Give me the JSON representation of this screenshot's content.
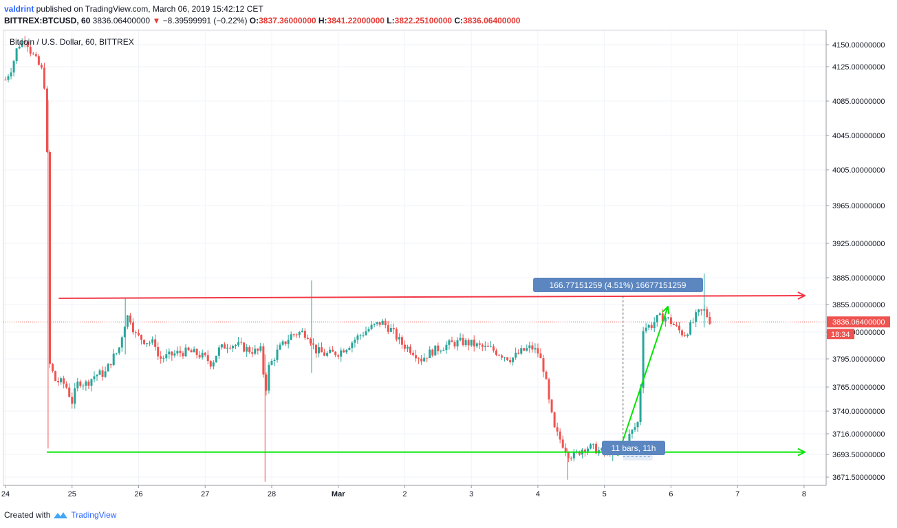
{
  "header": {
    "user": "valdrint",
    "published": " published on TradingView.com, March 06, 2019 15:42:12 CET",
    "symbol": "BITTREX:BTCUSD, 60",
    "last": " 3836.06400000",
    "change_arrow": "▼",
    "change": " −8.39599991 (−0.22%)",
    "o_label": " O:",
    "o_value": "3837.36000000",
    "h_label": " H:",
    "h_value": "3841.22000000",
    "l_label": " L:",
    "l_value": "3822.25100000",
    "c_label": " C:",
    "c_value": "3836.06400000"
  },
  "footer": {
    "created_with": "Created with",
    "brand": "TradingView"
  },
  "chart_data": {
    "type": "candlestick",
    "title": "Bitcoin / U.S. Dollar, 60, BITTREX",
    "y_ticks": [
      "4150.00000000",
      "4125.00000000",
      "4085.00000000",
      "4045.00000000",
      "4005.00000000",
      "3965.00000000",
      "3925.00000000",
      "3885.00000000",
      "3855.00000000",
      "3825.00000000",
      "3795.00000000",
      "3765.00000000",
      "3740.00000000",
      "3716.00000000",
      "3693.50000000",
      "3671.50000000"
    ],
    "x_ticks": [
      "24",
      "25",
      "26",
      "27",
      "28",
      "Mar",
      "2",
      "3",
      "4",
      "5",
      "6",
      "7",
      "8"
    ],
    "ylim": [
      3665,
      4165
    ],
    "xlim": [
      0,
      12.4
    ],
    "grid": true,
    "last_price_label": "3836.06400000",
    "countdown": "18:34",
    "up_color": "#26a69a",
    "down_color": "#ef5350",
    "price_keypoints": [
      [
        0.0,
        4110
      ],
      [
        0.1,
        4125
      ],
      [
        0.18,
        4148
      ],
      [
        0.3,
        4158
      ],
      [
        0.38,
        4142
      ],
      [
        0.46,
        4132
      ],
      [
        0.55,
        4120
      ],
      [
        0.62,
        4086
      ],
      [
        0.64,
        3830
      ],
      [
        0.65,
        3792
      ],
      [
        0.75,
        3772
      ],
      [
        0.9,
        3768
      ],
      [
        1.0,
        3750
      ],
      [
        1.1,
        3772
      ],
      [
        1.2,
        3768
      ],
      [
        1.35,
        3778
      ],
      [
        1.5,
        3780
      ],
      [
        1.6,
        3795
      ],
      [
        1.7,
        3805
      ],
      [
        1.78,
        3832
      ],
      [
        1.85,
        3845
      ],
      [
        1.95,
        3822
      ],
      [
        2.1,
        3815
      ],
      [
        2.25,
        3812
      ],
      [
        2.3,
        3795
      ],
      [
        2.45,
        3798
      ],
      [
        2.6,
        3802
      ],
      [
        2.75,
        3803
      ],
      [
        2.9,
        3800
      ],
      [
        3.0,
        3796
      ],
      [
        3.1,
        3790
      ],
      [
        3.2,
        3805
      ],
      [
        3.35,
        3812
      ],
      [
        3.5,
        3810
      ],
      [
        3.65,
        3805
      ],
      [
        3.78,
        3803
      ],
      [
        3.85,
        3805
      ],
      [
        3.9,
        3755
      ],
      [
        3.95,
        3785
      ],
      [
        4.1,
        3805
      ],
      [
        4.3,
        3822
      ],
      [
        4.45,
        3825
      ],
      [
        4.55,
        3822
      ],
      [
        4.65,
        3805
      ],
      [
        4.8,
        3800
      ],
      [
        5.0,
        3802
      ],
      [
        5.15,
        3810
      ],
      [
        5.3,
        3820
      ],
      [
        5.45,
        3828
      ],
      [
        5.65,
        3836
      ],
      [
        5.8,
        3827
      ],
      [
        5.95,
        3812
      ],
      [
        6.1,
        3805
      ],
      [
        6.25,
        3795
      ],
      [
        6.4,
        3803
      ],
      [
        6.55,
        3808
      ],
      [
        6.7,
        3812
      ],
      [
        6.85,
        3814
      ],
      [
        7.0,
        3812
      ],
      [
        7.15,
        3808
      ],
      [
        7.3,
        3806
      ],
      [
        7.45,
        3800
      ],
      [
        7.6,
        3795
      ],
      [
        7.75,
        3803
      ],
      [
        7.9,
        3808
      ],
      [
        8.0,
        3802
      ],
      [
        8.1,
        3782
      ],
      [
        8.15,
        3755
      ],
      [
        8.25,
        3720
      ],
      [
        8.35,
        3708
      ],
      [
        8.45,
        3695
      ],
      [
        8.55,
        3692
      ],
      [
        8.7,
        3702
      ],
      [
        8.85,
        3700
      ],
      [
        8.95,
        3696
      ],
      [
        9.05,
        3696
      ],
      [
        9.2,
        3700
      ],
      [
        9.32,
        3708
      ],
      [
        9.45,
        3722
      ],
      [
        9.52,
        3730
      ],
      [
        9.58,
        3830
      ],
      [
        9.7,
        3832
      ],
      [
        9.8,
        3840
      ],
      [
        9.9,
        3842
      ],
      [
        10.0,
        3836
      ],
      [
        10.1,
        3828
      ],
      [
        10.2,
        3822
      ],
      [
        10.3,
        3832
      ],
      [
        10.4,
        3845
      ],
      [
        10.5,
        3848
      ],
      [
        10.55,
        3842
      ],
      [
        10.6,
        3836
      ]
    ],
    "resistance_line": {
      "from": [
        0.8,
        3862
      ],
      "to": [
        12.0,
        3865
      ],
      "color": "#f23645"
    },
    "support_line": {
      "from": [
        0.62,
        3696
      ],
      "to": [
        12.0,
        3696
      ],
      "color": "#00e600"
    },
    "trend_arrow": {
      "from": [
        9.2,
        3692
      ],
      "to": [
        9.95,
        3852
      ],
      "color": "#00e600"
    },
    "measure": {
      "label": "166.77151259 (4.51%) 16677151259",
      "bars_label": "11 bars, 11h",
      "x": 9.28,
      "x_end": 9.72,
      "from": 3702,
      "to": 3867,
      "color": "#5b86c0"
    }
  }
}
